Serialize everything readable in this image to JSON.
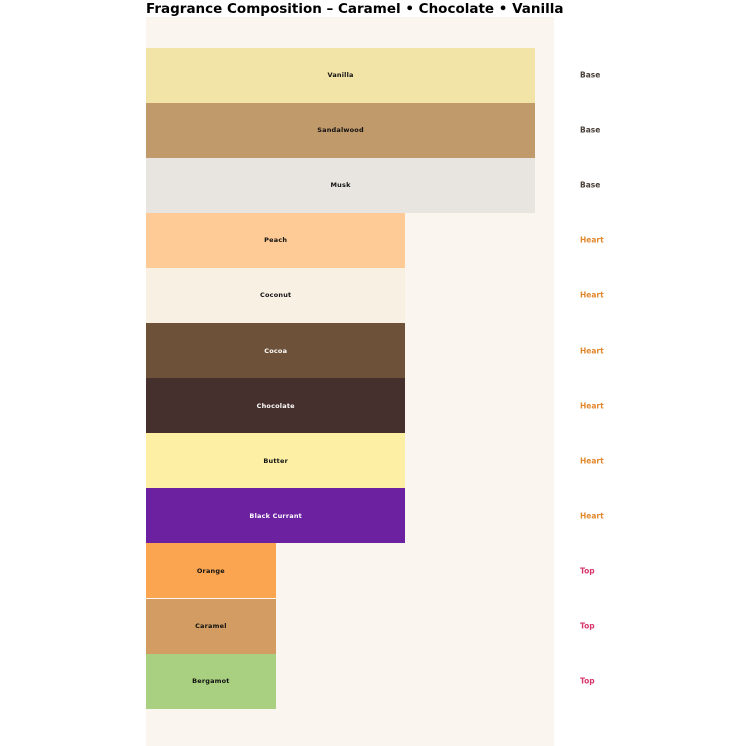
{
  "page": {
    "background": "#ffffff"
  },
  "chart_data": {
    "type": "bar",
    "orientation": "horizontal",
    "title": "Fragrance Composition – Caramel • Chocolate • Vanilla",
    "xlabel": "",
    "ylabel": "",
    "grid": false,
    "axes_visible": false,
    "panel_background": "#faf6ef",
    "xlim": [
      0,
      3.15
    ],
    "categories": [
      "Vanilla",
      "Sandalwood",
      "Musk",
      "Peach",
      "Coconut",
      "Cocoa",
      "Chocolate",
      "Butter",
      "Black Currant",
      "Orange",
      "Caramel",
      "Bergamot"
    ],
    "series": [
      {
        "name": "relative-note-width",
        "values": [
          3,
          3,
          3,
          2,
          2,
          2,
          2,
          2,
          2,
          1,
          1,
          1
        ]
      }
    ],
    "items": [
      {
        "label": "Vanilla",
        "group": "Base",
        "value": 3,
        "color": "#f2e3a6",
        "label_color": "#111111"
      },
      {
        "label": "Sandalwood",
        "group": "Base",
        "value": 3,
        "color": "#c09a6a",
        "label_color": "#111111"
      },
      {
        "label": "Musk",
        "group": "Base",
        "value": 3,
        "color": "#e8e5e0",
        "label_color": "#111111"
      },
      {
        "label": "Peach",
        "group": "Heart",
        "value": 2,
        "color": "#fecb96",
        "label_color": "#111111"
      },
      {
        "label": "Coconut",
        "group": "Heart",
        "value": 2,
        "color": "#f8f1e3",
        "label_color": "#111111"
      },
      {
        "label": "Cocoa",
        "group": "Heart",
        "value": 2,
        "color": "#6d5138",
        "label_color": "#ffffff"
      },
      {
        "label": "Chocolate",
        "group": "Heart",
        "value": 2,
        "color": "#46302d",
        "label_color": "#ffffff"
      },
      {
        "label": "Butter",
        "group": "Heart",
        "value": 2,
        "color": "#fdf0a5",
        "label_color": "#111111"
      },
      {
        "label": "Black Currant",
        "group": "Heart",
        "value": 2,
        "color": "#6b21a0",
        "label_color": "#ffffff"
      },
      {
        "label": "Orange",
        "group": "Top",
        "value": 1,
        "color": "#fca551",
        "label_color": "#111111"
      },
      {
        "label": "Caramel",
        "group": "Top",
        "value": 1,
        "color": "#d29c62",
        "label_color": "#111111"
      },
      {
        "label": "Bergamot",
        "group": "Top",
        "value": 1,
        "color": "#a9d080",
        "label_color": "#111111"
      }
    ],
    "groups": [
      {
        "name": "Base",
        "label_color": "#473e38"
      },
      {
        "name": "Heart",
        "label_color": "#e2882f"
      },
      {
        "name": "Top",
        "label_color": "#d6356d"
      }
    ],
    "legend": {
      "visible": false
    }
  }
}
